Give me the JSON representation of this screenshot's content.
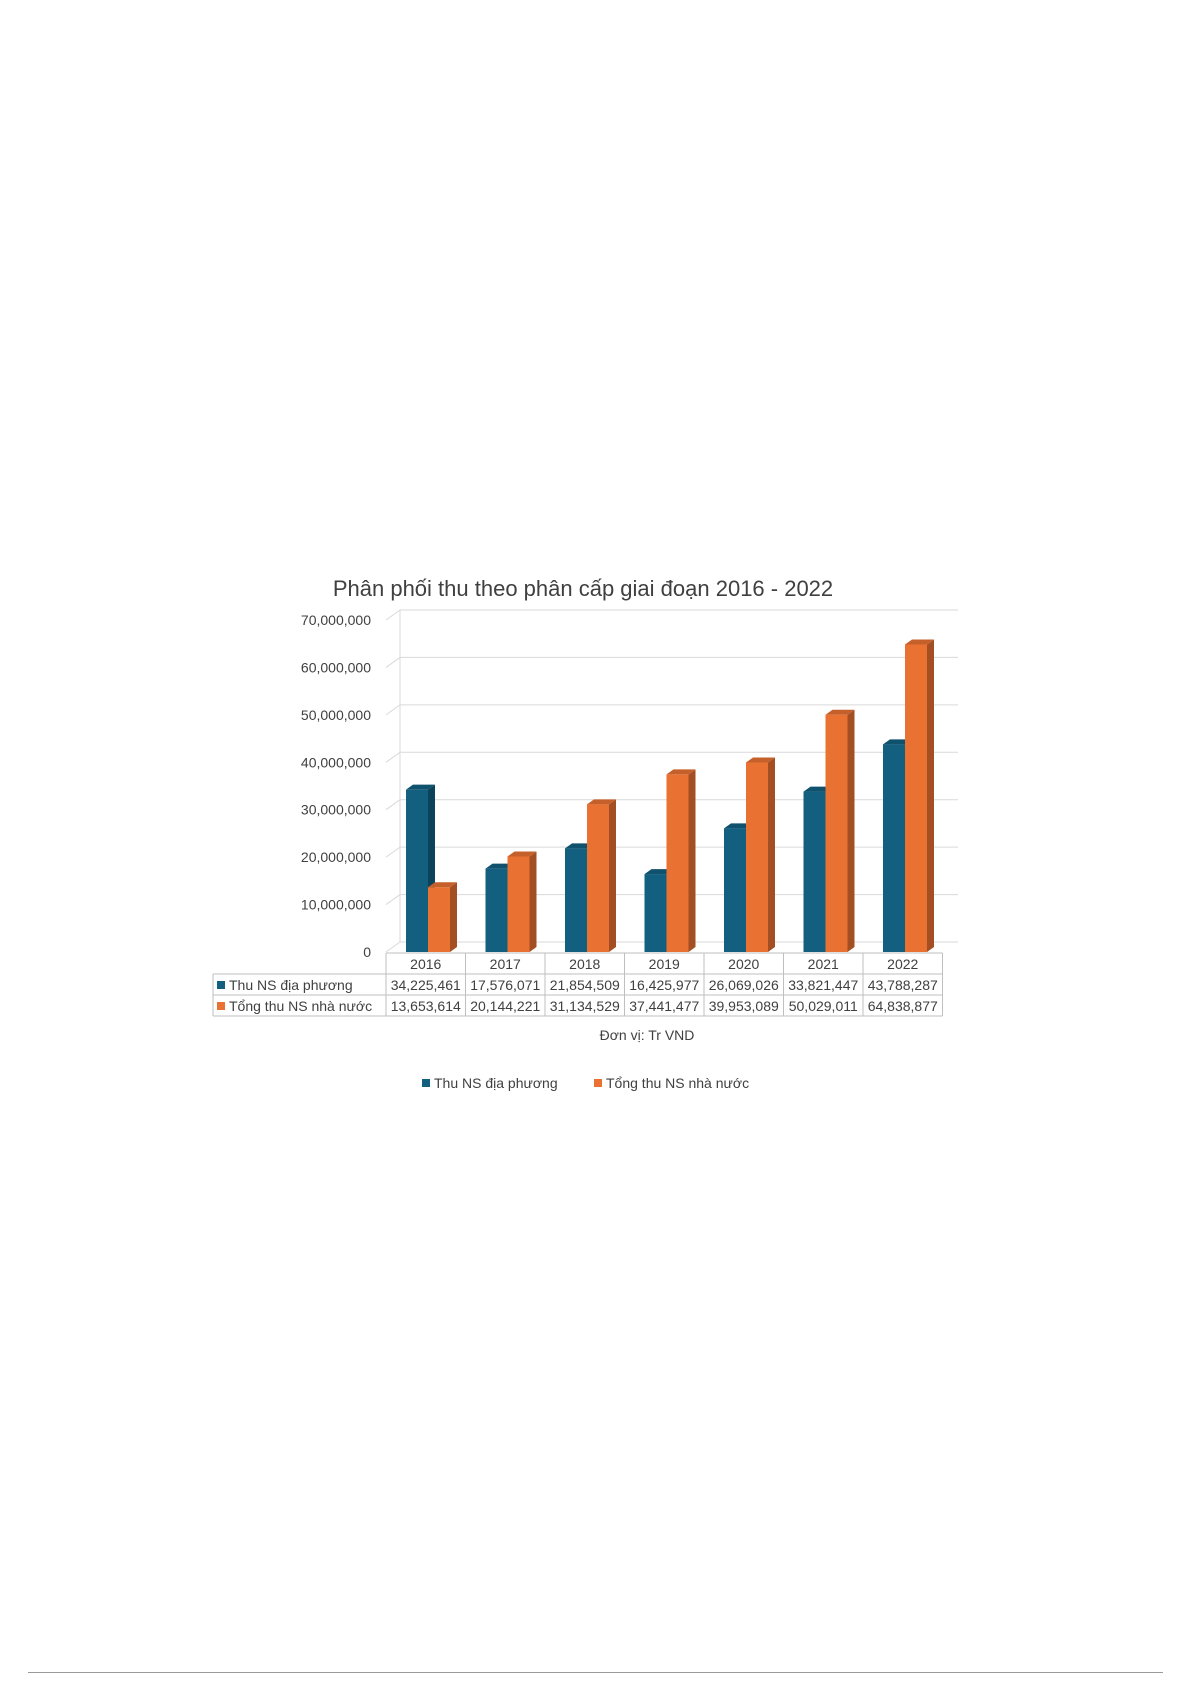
{
  "chart_data": {
    "type": "bar",
    "title": "Phân phối thu theo phân cấp giai đoạn 2016 - 2022",
    "categories": [
      "2016",
      "2017",
      "2018",
      "2019",
      "2020",
      "2021",
      "2022"
    ],
    "series": [
      {
        "name": "Thu NS địa phương",
        "color": "#135f80",
        "values": [
          34225461,
          17576071,
          21854509,
          16425977,
          26069026,
          33821447,
          43788287
        ],
        "labels": [
          "34,225,461",
          "17,576,071",
          "21,854,509",
          "16,425,977",
          "26,069,026",
          "33,821,447",
          "43,788,287"
        ]
      },
      {
        "name": "Tổng thu NS nhà nước",
        "color": "#e97132",
        "values": [
          13653614,
          20144221,
          31134529,
          37441477,
          39953089,
          50029011,
          64838877
        ],
        "labels": [
          "13,653,614",
          "20,144,221",
          "31,134,529",
          "37,441,477",
          "39,953,089",
          "50,029,011",
          "64,838,877"
        ]
      }
    ],
    "ylim": [
      0,
      70000000
    ],
    "yticks": [
      0,
      10000000,
      20000000,
      30000000,
      40000000,
      50000000,
      60000000,
      70000000
    ],
    "ytick_labels": [
      "0",
      "10,000,000",
      "20,000,000",
      "30,000,000",
      "40,000,000",
      "50,000,000",
      "60,000,000",
      "70,000,000"
    ],
    "unit_note": "Đơn vị: Tr VND",
    "grid": true,
    "legend_position": "bottom",
    "data_table": true,
    "style": "3d-clustered-column"
  }
}
